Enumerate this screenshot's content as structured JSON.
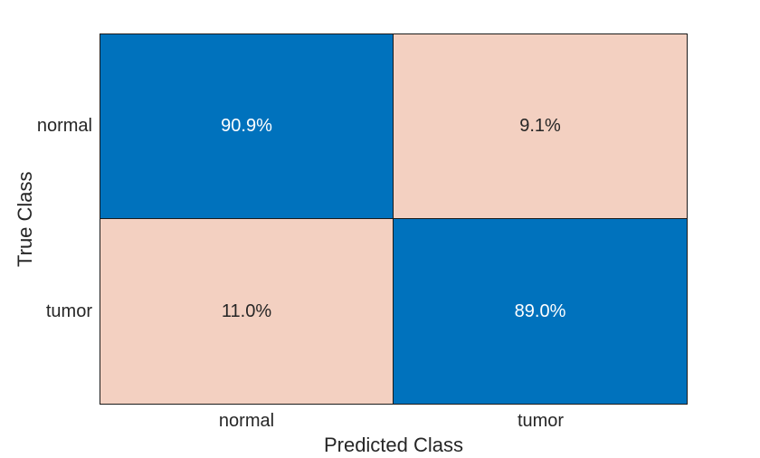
{
  "chart_data": {
    "type": "heatmap",
    "variant": "confusion-matrix",
    "title": "",
    "xlabel": "Predicted Class",
    "ylabel": "True Class",
    "x_categories": [
      "normal",
      "tumor"
    ],
    "y_categories": [
      "normal",
      "tumor"
    ],
    "value_format": "percent",
    "rows": [
      {
        "true_class": "normal",
        "values": [
          90.9,
          9.1
        ]
      },
      {
        "true_class": "tumor",
        "values": [
          11.0,
          89.0
        ]
      }
    ],
    "cells": [
      {
        "row": "normal",
        "col": "normal",
        "value": 90.9,
        "label": "90.9%",
        "bg": "#0072BD",
        "fg": "#FFFFFF"
      },
      {
        "row": "normal",
        "col": "tumor",
        "value": 9.1,
        "label": "9.1%",
        "bg": "#F3D0C1",
        "fg": "#262626"
      },
      {
        "row": "tumor",
        "col": "normal",
        "value": 11.0,
        "label": "11.0%",
        "bg": "#F3D0C1",
        "fg": "#262626"
      },
      {
        "row": "tumor",
        "col": "tumor",
        "value": 89.0,
        "label": "89.0%",
        "bg": "#0072BD",
        "fg": "#FFFFFF"
      }
    ],
    "colors": {
      "diagonal": "#0072BD",
      "off_diagonal": "#F3D0C1",
      "grid_border": "#1A1A1A",
      "label_text": "#262626",
      "background": "#FFFFFF"
    },
    "layout": {
      "grid": "2x2",
      "legend": "none",
      "colorbar": "none"
    }
  }
}
